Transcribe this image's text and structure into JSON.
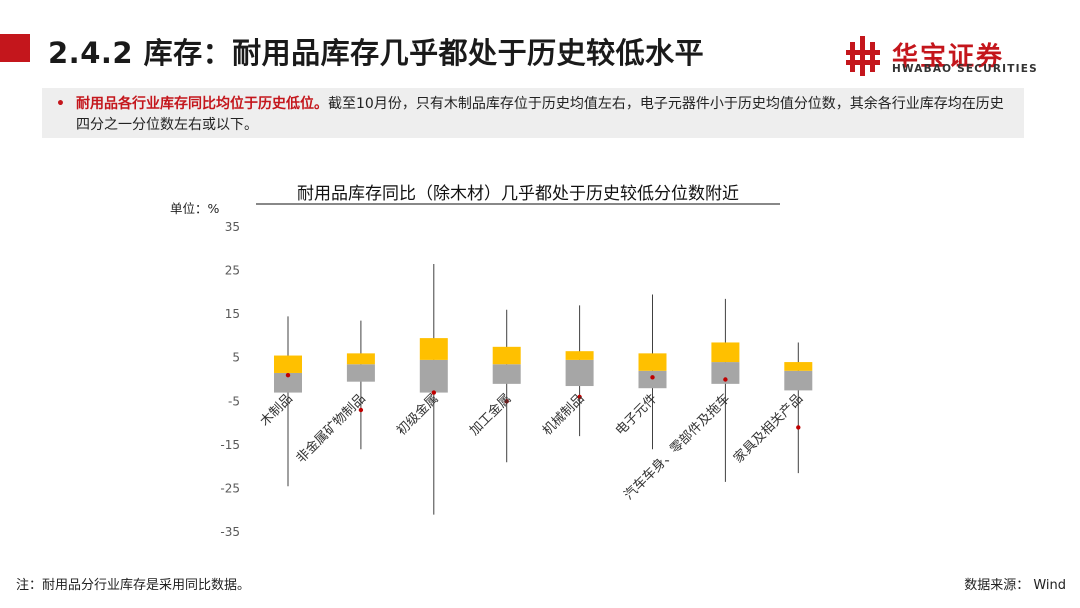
{
  "header": {
    "title": "2.4.2 库存：耐用品库存几乎都处于历史较低水平",
    "logo_cn": "华宝证券",
    "logo_en": "HWABAO SECURITIES"
  },
  "summary": {
    "bullet": "•",
    "highlight": "耐用品各行业库存同比均位于历史低位。",
    "text": "截至10月份，只有木制品库存位于历史均值左右，电子元器件小于历史均值分位数，其余各行业库存均在历史四分之一分位数左右或以下。"
  },
  "chart_data": {
    "type": "boxplot",
    "title": "耐用品库存同比（除木材）几乎都处于历史较低分位数附近",
    "unit_label": "单位：%",
    "ylim": [
      -35,
      35
    ],
    "yticks": [
      35,
      25,
      15,
      5,
      -5,
      -15,
      -25,
      -35
    ],
    "categories": [
      "木制品",
      "非金属矿物制品",
      "初级金属",
      "加工金属",
      "机械制品",
      "电子元件",
      "汽车车身、零部件及拖车",
      "家具及相关产品"
    ],
    "series": [
      {
        "name": "min",
        "values": [
          -24.5,
          -16,
          -31,
          -19,
          -13,
          -16,
          -23.5,
          -21.5
        ]
      },
      {
        "name": "q1",
        "values": [
          -3,
          -0.5,
          -3,
          -1,
          -1.5,
          -2,
          -1,
          -2.5
        ]
      },
      {
        "name": "median",
        "values": [
          1.5,
          3.5,
          4.5,
          3.5,
          4.5,
          2,
          4,
          2
        ]
      },
      {
        "name": "q3",
        "values": [
          5.5,
          6,
          9.5,
          7.5,
          6.5,
          6,
          8.5,
          4
        ]
      },
      {
        "name": "max",
        "values": [
          14.5,
          13.5,
          26.5,
          16,
          17,
          19.5,
          18.5,
          8.5
        ]
      },
      {
        "name": "latest",
        "values": [
          1,
          -7,
          -3,
          -5,
          -4,
          0.5,
          0,
          -11
        ]
      }
    ],
    "colors": {
      "upper_box": "#ffc000",
      "lower_box": "#a6a6a6",
      "whisker": "#404040",
      "marker": "#c00000",
      "axis_text": "#595959"
    }
  },
  "footer": {
    "note": "注：耐用品分行业库存是采用同比数据。",
    "source": "数据来源： Wind"
  }
}
